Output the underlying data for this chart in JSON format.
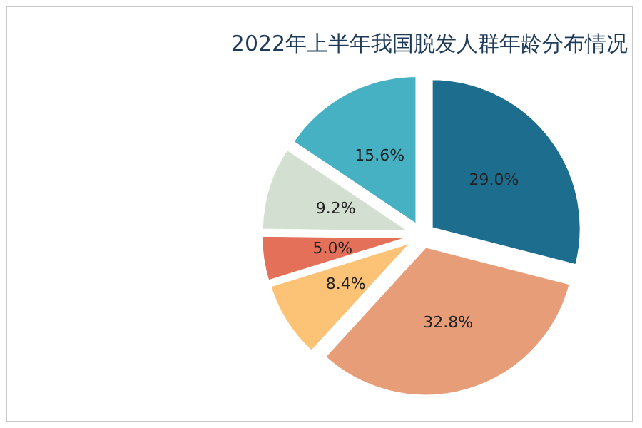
{
  "chart_data": {
    "type": "pie",
    "title": "2022年上半年我国脱发人群年龄分布情况",
    "categories": [
      null,
      null,
      null,
      null,
      null,
      null
    ],
    "values": [
      29.0,
      32.8,
      8.4,
      5.0,
      9.2,
      15.6
    ],
    "value_labels": [
      "29.0%",
      "32.8%",
      "8.4%",
      "5.0%",
      "9.2%",
      "15.6%"
    ],
    "colors": [
      "#1d6d8e",
      "#e89d79",
      "#fcc376",
      "#e5705a",
      "#d3e0d1",
      "#46b1c2"
    ]
  }
}
